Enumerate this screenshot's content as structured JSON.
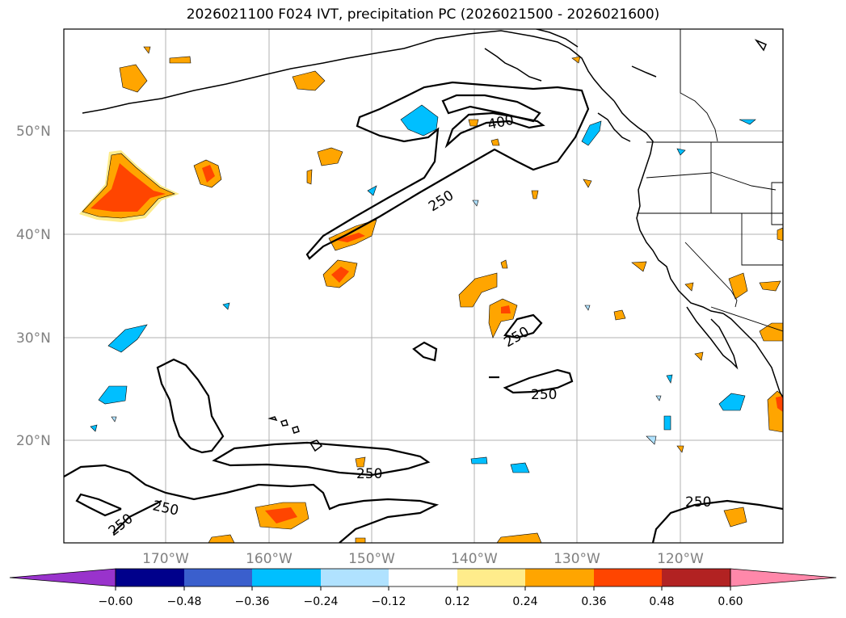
{
  "title": "2026021100 F024 IVT, precipitation PC (2026021500 - 2026021600)",
  "latitude_labels": [
    "50°N",
    "40°N",
    "30°N",
    "20°N"
  ],
  "longitude_labels": [
    "170°W",
    "160°W",
    "150°W",
    "140°W",
    "130°W",
    "120°W"
  ],
  "contour_labels": [
    "400",
    "250",
    "250",
    "250",
    "250",
    "250",
    "250",
    "250"
  ],
  "colorbar": {
    "ticks": [
      "−0.60",
      "−0.48",
      "−0.36",
      "−0.24",
      "−0.12",
      "0.12",
      "0.24",
      "0.36",
      "0.48",
      "0.60"
    ],
    "colors": [
      "#9933cc",
      "#00008b",
      "#3a5fcd",
      "#00bfff",
      "#b0e2ff",
      "#ffffff",
      "#ffec8b",
      "#ffa500",
      "#ff4500",
      "#b22222",
      "#ff88aa"
    ]
  }
}
